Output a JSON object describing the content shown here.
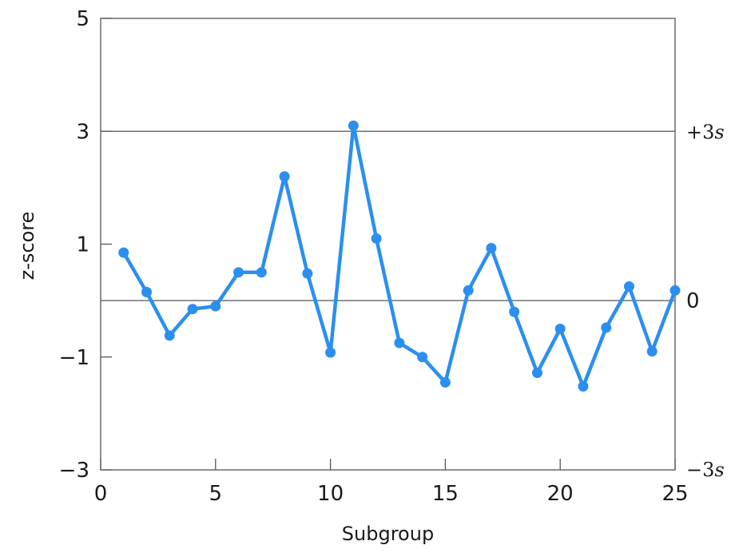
{
  "chart_data": {
    "type": "line",
    "title": "",
    "xlabel": "Subgroup",
    "ylabel": "z-score",
    "xlim": [
      0,
      25
    ],
    "ylim": [
      -3,
      5
    ],
    "xticks": [
      {
        "value": 0,
        "label": "0"
      },
      {
        "value": 5,
        "label": "5"
      },
      {
        "value": 10,
        "label": "10"
      },
      {
        "value": 15,
        "label": "15"
      },
      {
        "value": 20,
        "label": "20"
      },
      {
        "value": 25,
        "label": "25"
      }
    ],
    "yticks": [
      {
        "value": 5,
        "label": "5"
      },
      {
        "value": 3,
        "label": "3"
      },
      {
        "value": 1,
        "label": "1"
      },
      {
        "value": -1,
        "label": "−1"
      },
      {
        "value": -3,
        "label": "−3"
      }
    ],
    "reference_lines": [
      {
        "y": 3,
        "label": "+3s"
      },
      {
        "y": 0,
        "label": "0"
      },
      {
        "y": -3,
        "label": "−3s"
      }
    ],
    "grid": false,
    "legend": "none",
    "colors": {
      "series": "#2b8ff0",
      "axes": "#555555",
      "text": "#1a1a1a"
    },
    "series": [
      {
        "x": [
          1,
          2,
          3,
          4,
          5,
          6,
          7,
          8,
          9,
          10,
          11,
          12,
          13,
          14,
          15,
          16,
          17,
          18,
          19,
          20,
          21,
          22,
          23,
          24,
          25
        ],
        "values": [
          0.85,
          0.15,
          -0.62,
          -0.15,
          -0.1,
          0.5,
          0.5,
          2.2,
          0.48,
          -0.92,
          3.1,
          1.1,
          -0.75,
          -1.0,
          -1.45,
          0.18,
          0.93,
          -0.2,
          -1.28,
          -0.5,
          -1.52,
          -0.48,
          0.25,
          -0.9,
          0.18
        ]
      }
    ]
  }
}
